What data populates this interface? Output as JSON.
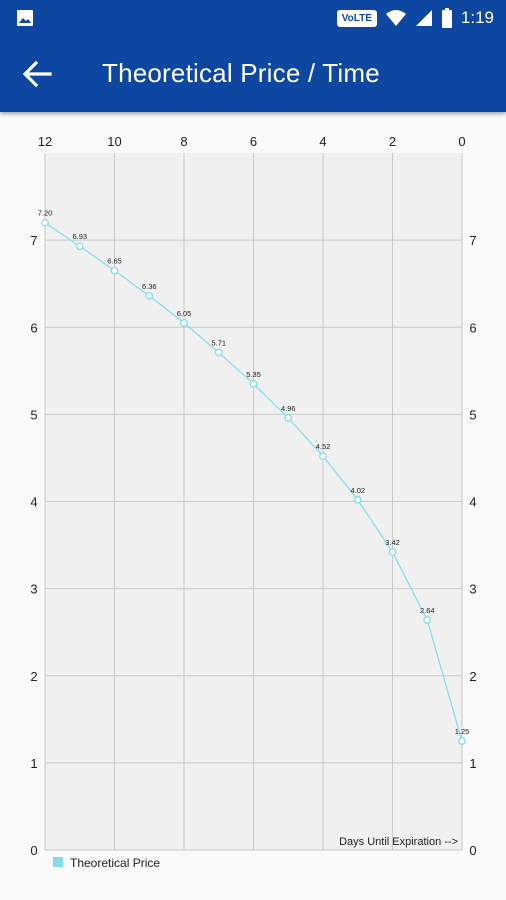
{
  "status_bar": {
    "gallery_icon": "image-icon",
    "network_label": "VoLTE",
    "icons": [
      "wifi-icon",
      "signal-icon",
      "battery-icon"
    ],
    "time": "1:19",
    "color": "#0d47a1"
  },
  "app_bar": {
    "back_icon": "arrow-back-icon",
    "title": "Theoretical Price / Time",
    "color": "#0d47a1"
  },
  "chart_data": {
    "type": "line",
    "title": "",
    "xlabel": "Days Until Expiration -->",
    "ylabel": "",
    "x_axis_position": "top",
    "x_reversed": true,
    "xlim": [
      12,
      0
    ],
    "ylim": [
      0,
      8
    ],
    "x_ticks": [
      "12",
      "10",
      "8",
      "6",
      "4",
      "2",
      "0"
    ],
    "y_ticks": [
      "0",
      "1",
      "2",
      "3",
      "4",
      "5",
      "6",
      "7"
    ],
    "y_axis_both_sides": true,
    "grid": true,
    "legend_position": "bottom-left",
    "series": [
      {
        "name": "Theoretical Price",
        "color": "#80deea",
        "x": [
          12,
          11,
          10,
          9,
          8,
          7,
          6,
          5,
          4,
          3,
          2,
          1,
          0
        ],
        "values": [
          7.2,
          6.93,
          6.65,
          6.36,
          6.05,
          5.71,
          5.35,
          4.96,
          4.52,
          4.02,
          3.42,
          2.64,
          1.25
        ],
        "labels": [
          "7.20",
          "6.93",
          "6.65",
          "6.36",
          "6.05",
          "5.71",
          "5.35",
          "4.96",
          "4.52",
          "4.02",
          "3.42",
          "2.64",
          "1.25"
        ]
      }
    ]
  }
}
